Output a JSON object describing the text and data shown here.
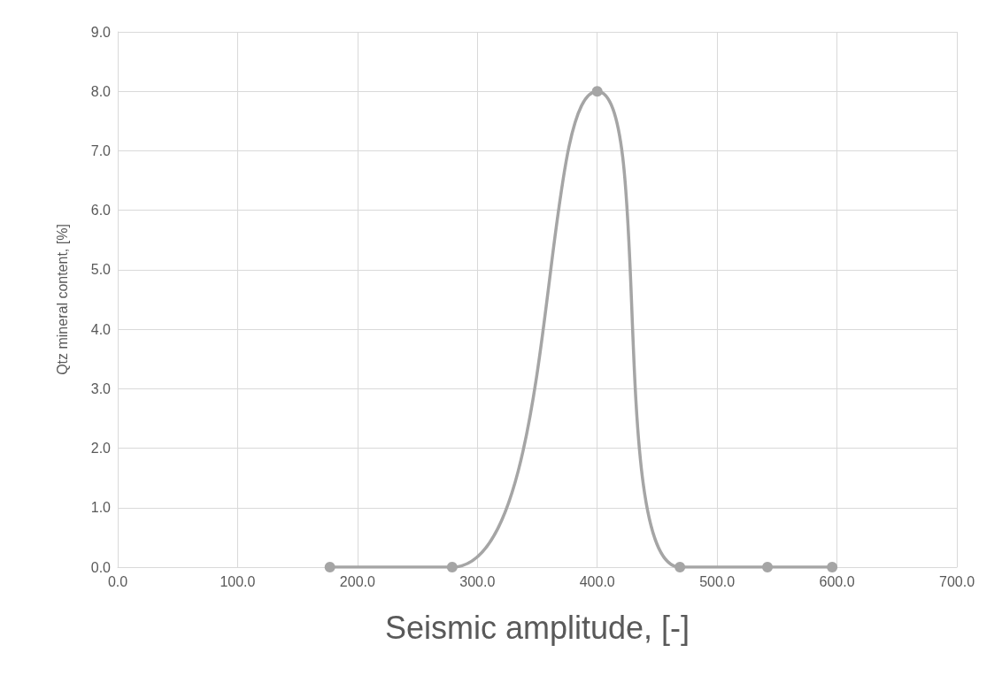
{
  "chart_data": {
    "type": "line",
    "xlabel": "Seismic amplitude, [-]",
    "ylabel": "Qtz mineral content, [%]",
    "x": [
      177,
      279,
      400,
      469,
      542,
      596
    ],
    "series": [
      {
        "color": "#a5a5a5",
        "values": [
          0,
          0,
          8,
          0,
          0,
          0
        ]
      }
    ],
    "xlim": [
      0,
      700
    ],
    "xticks": [
      {
        "value": 0,
        "label": "0.0"
      },
      {
        "value": 100,
        "label": "100.0"
      },
      {
        "value": 200,
        "label": "200.0"
      },
      {
        "value": 300,
        "label": "300.0"
      },
      {
        "value": 400,
        "label": "400.0"
      },
      {
        "value": 500,
        "label": "500.0"
      },
      {
        "value": 600,
        "label": "600.0"
      },
      {
        "value": 700,
        "label": "700.0"
      }
    ],
    "ylim": [
      0,
      9
    ],
    "yticks": [
      {
        "value": 0,
        "label": "0.0"
      },
      {
        "value": 1,
        "label": "1.0"
      },
      {
        "value": 2,
        "label": "2.0"
      },
      {
        "value": 3,
        "label": "3.0"
      },
      {
        "value": 4,
        "label": "4.0"
      },
      {
        "value": 5,
        "label": "5.0"
      },
      {
        "value": 6,
        "label": "6.0"
      },
      {
        "value": 7,
        "label": "7.0"
      },
      {
        "value": 8,
        "label": "8.0"
      },
      {
        "value": 9,
        "label": "9.0"
      }
    ],
    "grid": true,
    "marker": "circle",
    "line_style": "solid"
  }
}
